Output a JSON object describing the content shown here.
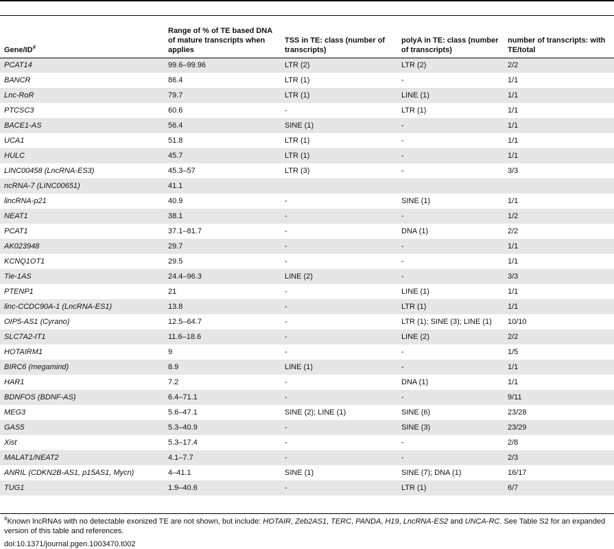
{
  "table": {
    "headers": {
      "gene": "Gene/ID",
      "gene_mark": "#",
      "range": "Range of % of TE based DNA of mature transcripts when applies",
      "tss": "TSS in TE: class (number of transcripts)",
      "polya": "polyA in TE: class (number of transcripts)",
      "count": "number of transcripts: with TE/total"
    },
    "rows": [
      {
        "gene": "PCAT14",
        "range": "99.6–99.96",
        "tss": "LTR (2)",
        "polya": "LTR (2)",
        "count": "2/2"
      },
      {
        "gene": "BANCR",
        "range": "86.4",
        "tss": "LTR (1)",
        "polya": "-",
        "count": "1/1"
      },
      {
        "gene": "Lnc-RoR",
        "range": "79.7",
        "tss": "LTR (1)",
        "polya": "LINE (1)",
        "count": "1/1"
      },
      {
        "gene": "PTCSC3",
        "range": "60.6",
        "tss": "-",
        "polya": "LTR (1)",
        "count": "1/1"
      },
      {
        "gene": "BACE1-AS",
        "range": "56.4",
        "tss": "SINE (1)",
        "polya": "-",
        "count": "1/1"
      },
      {
        "gene": "UCA1",
        "range": "51.8",
        "tss": "LTR (1)",
        "polya": "-",
        "count": "1/1"
      },
      {
        "gene": "HULC",
        "range": "45.7",
        "tss": "LTR (1)",
        "polya": "-",
        "count": "1/1"
      },
      {
        "gene": "LINC00458 (LncRNA-ES3)",
        "range": "45.3–57",
        "tss": "LTR (3)",
        "polya": "-",
        "count": "3/3"
      },
      {
        "gene": "ncRNA-7 (LINC00651)",
        "range": "41.1",
        "tss": "",
        "polya": "",
        "count": ""
      },
      {
        "gene": "lincRNA-p21",
        "range": "40.9",
        "tss": "-",
        "polya": "SINE (1)",
        "count": "1/1"
      },
      {
        "gene": "NEAT1",
        "range": "38.1",
        "tss": "-",
        "polya": "-",
        "count": "1/2"
      },
      {
        "gene": "PCAT1",
        "range": "37.1–81.7",
        "tss": "-",
        "polya": "DNA (1)",
        "count": "2/2"
      },
      {
        "gene": "AK023948",
        "range": "29.7",
        "tss": "-",
        "polya": "-",
        "count": "1/1"
      },
      {
        "gene": "KCNQ1OT1",
        "range": "29.5",
        "tss": "-",
        "polya": "-",
        "count": "1/1"
      },
      {
        "gene": "Tie-1AS",
        "range": "24.4–96.3",
        "tss": "LINE (2)",
        "polya": "-",
        "count": "3/3"
      },
      {
        "gene": "PTENP1",
        "range": "21",
        "tss": "-",
        "polya": "LINE (1)",
        "count": "1/1"
      },
      {
        "gene": "linc-CCDC90A-1 (LncRNA-ES1)",
        "range": "13.8",
        "tss": "-",
        "polya": "LTR (1)",
        "count": "1/1"
      },
      {
        "gene": "OIP5-AS1 (Cyrano)",
        "range": "12.5–64.7",
        "tss": "-",
        "polya": "LTR (1); SINE (3); LINE (1)",
        "count": "10/10"
      },
      {
        "gene": "SLC7A2-IT1",
        "range": "11.6–18.6",
        "tss": "-",
        "polya": "LINE (2)",
        "count": "2/2"
      },
      {
        "gene": "HOTAIRM1",
        "range": "9",
        "tss": "-",
        "polya": "-",
        "count": "1/5"
      },
      {
        "gene": "BIRC6 (megamind)",
        "range": "8.9",
        "tss": "LINE (1)",
        "polya": "-",
        "count": "1/1"
      },
      {
        "gene": "HAR1",
        "range": "7.2",
        "tss": "-",
        "polya": "DNA (1)",
        "count": "1/1"
      },
      {
        "gene": "BDNFOS (BDNF-AS)",
        "range": "6.4–71.1",
        "tss": "-",
        "polya": "-",
        "count": "9/11"
      },
      {
        "gene": "MEG3",
        "range": "5.6–47.1",
        "tss": "SINE (2); LINE (1)",
        "polya": "SINE (6)",
        "count": "23/28"
      },
      {
        "gene": "GAS5",
        "range": "5.3–40.9",
        "tss": "-",
        "polya": "SINE (3)",
        "count": "23/29"
      },
      {
        "gene": "Xist",
        "range": "5.3–17.4",
        "tss": "-",
        "polya": "-",
        "count": "2/8"
      },
      {
        "gene": "MALAT1/NEAT2",
        "range": "4.1–7.7",
        "tss": "-",
        "polya": "-",
        "count": "2/3"
      },
      {
        "gene": "ANRIL (CDKN2B-AS1, p15AS1, Mycn)",
        "range": "4–41.1",
        "tss": "SINE (1)",
        "polya": "SINE (7); DNA (1)",
        "count": "16/17"
      },
      {
        "gene": "TUG1",
        "range": "1.9–40.6",
        "tss": "-",
        "polya": "LTR (1)",
        "count": "6/7"
      }
    ]
  },
  "footnote": {
    "mark": "#",
    "intro": "Known lncRNAs with no detectable exonized TE are not shown, but include: ",
    "genes": [
      "HOTAIR",
      "Zeb2AS1",
      "TERC",
      "PANDA",
      "H19",
      "LncRNA-ES2"
    ],
    "and": " and ",
    "last_gene": "UNCA-RC",
    "tail": ". See Table S2 for an expanded version of this table and references.",
    "sep": ", "
  },
  "doi": "doi:10.1371/journal.pgen.1003470.t002"
}
